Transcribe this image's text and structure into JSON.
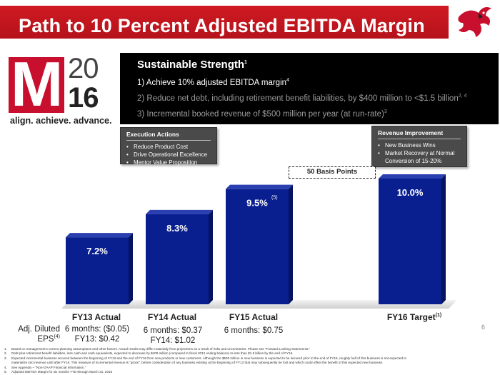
{
  "header": {
    "title": "Path to 10 Percent Adjusted EBITDA Margin",
    "icon": "cardinal-logo-icon"
  },
  "logo": {
    "mark": "M",
    "year_top": "20",
    "year_bottom": "16",
    "tagline": "align. achieve. advance."
  },
  "strength": {
    "title": "Sustainable Strength",
    "title_sup": "1",
    "items": [
      {
        "text": "1) Achieve 10% adjusted EBITDA margin",
        "sup": "4"
      },
      {
        "text": "2) Reduce net debt, including retirement benefit liabilities, by $400 million to <$1.5 billion",
        "sup": "2, 4"
      },
      {
        "text": "3) Incremental booked revenue of $500 million per year (at run-rate)",
        "sup": "3"
      }
    ]
  },
  "callouts": {
    "execution": {
      "title": "Execution Actions",
      "items": [
        "Reduce Product Cost",
        "Drive Operational Excellence",
        "Mentor Value Proposition"
      ]
    },
    "revenue": {
      "title": "Revenue Improvement",
      "items": [
        "New Business Wins",
        "Market Recovery at Normal Conversion of 15-20%"
      ]
    }
  },
  "basis_points": "50 Basis Points",
  "chart_data": {
    "type": "bar",
    "title": "Path to 10 Percent Adjusted EBITDA Margin",
    "categories": [
      "FY13 Actual",
      "FY14 Actual",
      "FY15 Actual",
      "FY16 Target"
    ],
    "category_sups": [
      "",
      "",
      "",
      "(1)"
    ],
    "values": [
      7.2,
      8.3,
      9.5,
      10.0
    ],
    "data_labels": [
      "7.2%",
      "8.3%",
      "9.5%",
      "10.0%"
    ],
    "data_label_sups": [
      "",
      "",
      "(5)",
      ""
    ],
    "ylim": [
      4.0,
      10.5
    ],
    "grid": false,
    "bar_color": "#0a1f8f",
    "eps": {
      "label": "Adj. Diluted",
      "label2": "EPS",
      "label_sup": "(4)",
      "rows": [
        [
          "6 months: ($0.05)",
          "FY13: $0.42"
        ],
        [
          "6 months: $0.37",
          "FY14: $1.02"
        ],
        [
          "6 months: $0.75"
        ],
        []
      ]
    }
  },
  "footnotes": [
    {
      "num": "1.",
      "text": "Based on management’s current planning assumptions and other factors. Actual results may differ materially from projections as a result of risks and uncertainties. Please see “Forward Looking Statements.”"
    },
    {
      "num": "2.",
      "text": "Debt plus retirement benefit liabilities, less cash and cash equivalents, expected to decrease by $400 million (compared to fiscal 2012 ending balance) to less than $1.5 billion by the end of FY16."
    },
    {
      "num": "3.",
      "text": "Expected incremental business secured between the beginning of FY13 and the end of FY16 from new products or new customers. Although the $500 million in new business is expected to be secured prior to the end of FY16, roughly half of this business is not expected to"
    },
    {
      "num": "",
      "text": "materialize into revenue until after FY16. This measure of incremental revenue is “gross”, before consideration of any business existing at the beginning of FY13 that may subsequently be lost and which could offset the benefit of this expected new business."
    },
    {
      "num": "4.",
      "text": "See Appendix – “Non-GAAP Financial Information.”"
    },
    {
      "num": "5.",
      "text": "Adjusted EBITDA Margin for six months YTD through March 31, 2015"
    }
  ],
  "page_number": "6"
}
